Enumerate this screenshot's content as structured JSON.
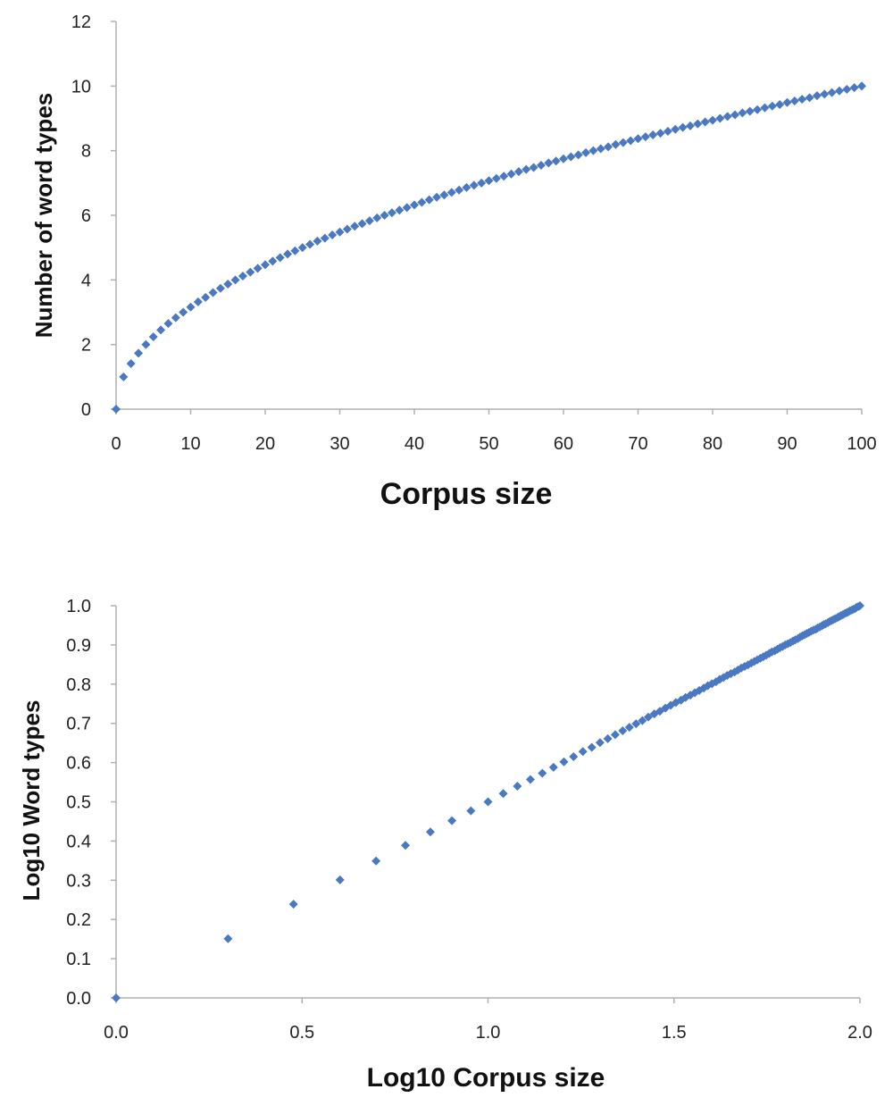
{
  "chart_data": [
    {
      "type": "scatter",
      "title": "",
      "xlabel": "Corpus size",
      "ylabel": "Number of word types",
      "xlim": [
        0,
        100
      ],
      "ylim": [
        0,
        12
      ],
      "xticks": [
        "0",
        "10",
        "20",
        "30",
        "40",
        "50",
        "60",
        "70",
        "80",
        "90",
        "100"
      ],
      "yticks": [
        "0",
        "2",
        "4",
        "6",
        "8",
        "10",
        "12"
      ],
      "grid": false,
      "legend": "none",
      "marker": "diamond",
      "color": "#4a78c2",
      "series": [
        {
          "x": [
            0,
            1,
            2,
            3,
            4,
            5,
            6,
            7,
            8,
            9,
            10,
            11,
            12,
            13,
            14,
            15,
            16,
            17,
            18,
            19,
            20,
            21,
            22,
            23,
            24,
            25,
            26,
            27,
            28,
            29,
            30,
            31,
            32,
            33,
            34,
            35,
            36,
            37,
            38,
            39,
            40,
            41,
            42,
            43,
            44,
            45,
            46,
            47,
            48,
            49,
            50,
            51,
            52,
            53,
            54,
            55,
            56,
            57,
            58,
            59,
            60,
            61,
            62,
            63,
            64,
            65,
            66,
            67,
            68,
            69,
            70,
            71,
            72,
            73,
            74,
            75,
            76,
            77,
            78,
            79,
            80,
            81,
            82,
            83,
            84,
            85,
            86,
            87,
            88,
            89,
            90,
            91,
            92,
            93,
            94,
            95,
            96,
            97,
            98,
            99,
            100
          ],
          "y": [
            0,
            1.0,
            1.41,
            1.73,
            2.0,
            2.24,
            2.45,
            2.65,
            2.83,
            3.0,
            3.16,
            3.32,
            3.46,
            3.61,
            3.74,
            3.87,
            4.0,
            4.12,
            4.24,
            4.36,
            4.47,
            4.58,
            4.69,
            4.8,
            4.9,
            5.0,
            5.1,
            5.2,
            5.29,
            5.39,
            5.48,
            5.57,
            5.66,
            5.74,
            5.83,
            5.92,
            6.0,
            6.08,
            6.16,
            6.24,
            6.32,
            6.4,
            6.48,
            6.56,
            6.63,
            6.71,
            6.78,
            6.86,
            6.93,
            7.0,
            7.07,
            7.14,
            7.21,
            7.28,
            7.35,
            7.42,
            7.48,
            7.55,
            7.62,
            7.68,
            7.75,
            7.81,
            7.87,
            7.94,
            8.0,
            8.06,
            8.12,
            8.19,
            8.25,
            8.31,
            8.37,
            8.43,
            8.49,
            8.54,
            8.6,
            8.66,
            8.72,
            8.77,
            8.83,
            8.89,
            8.94,
            9.0,
            9.06,
            9.11,
            9.17,
            9.22,
            9.27,
            9.33,
            9.38,
            9.43,
            9.49,
            9.54,
            9.59,
            9.64,
            9.7,
            9.75,
            9.8,
            9.85,
            9.9,
            9.95,
            10.0
          ]
        }
      ]
    },
    {
      "type": "scatter",
      "title": "",
      "xlabel": "Log10 Corpus size",
      "ylabel": "Log10 Word types",
      "xlim": [
        0,
        2
      ],
      "ylim": [
        0,
        1
      ],
      "xticks": [
        "0.0",
        "0.5",
        "1.0",
        "1.5",
        "2.0"
      ],
      "yticks": [
        "0.0",
        "0.1",
        "0.2",
        "0.3",
        "0.4",
        "0.5",
        "0.6",
        "0.7",
        "0.8",
        "0.9",
        "1.0"
      ],
      "grid": false,
      "legend": "none",
      "marker": "diamond",
      "color": "#4a78c2",
      "series": [
        {
          "x": [
            0.0,
            0.301,
            0.477,
            0.602,
            0.699,
            0.778,
            0.845,
            0.903,
            0.954,
            1.0,
            1.041,
            1.079,
            1.114,
            1.146,
            1.176,
            1.204,
            1.23,
            1.255,
            1.279,
            1.301,
            1.322,
            1.342,
            1.362,
            1.38,
            1.398,
            1.415,
            1.431,
            1.447,
            1.462,
            1.477,
            1.491,
            1.505,
            1.519,
            1.531,
            1.544,
            1.556,
            1.568,
            1.58,
            1.591,
            1.602,
            1.613,
            1.623,
            1.633,
            1.643,
            1.653,
            1.663,
            1.672,
            1.681,
            1.69,
            1.699,
            1.708,
            1.716,
            1.724,
            1.732,
            1.74,
            1.748,
            1.756,
            1.763,
            1.771,
            1.778,
            1.785,
            1.792,
            1.799,
            1.806,
            1.813,
            1.82,
            1.826,
            1.833,
            1.839,
            1.845,
            1.851,
            1.857,
            1.863,
            1.869,
            1.875,
            1.881,
            1.886,
            1.892,
            1.898,
            1.903,
            1.908,
            1.914,
            1.919,
            1.924,
            1.929,
            1.934,
            1.94,
            1.944,
            1.949,
            1.954,
            1.959,
            1.964,
            1.968,
            1.973,
            1.978,
            1.982,
            1.987,
            1.991,
            1.996,
            2.0
          ],
          "y": [
            0.0,
            0.151,
            0.239,
            0.301,
            0.349,
            0.389,
            0.423,
            0.452,
            0.477,
            0.5,
            0.521,
            0.54,
            0.557,
            0.573,
            0.588,
            0.602,
            0.615,
            0.628,
            0.639,
            0.651,
            0.661,
            0.671,
            0.681,
            0.69,
            0.699,
            0.707,
            0.716,
            0.724,
            0.731,
            0.739,
            0.746,
            0.753,
            0.759,
            0.766,
            0.772,
            0.778,
            0.784,
            0.79,
            0.796,
            0.801,
            0.806,
            0.812,
            0.817,
            0.822,
            0.827,
            0.831,
            0.836,
            0.841,
            0.845,
            0.849,
            0.854,
            0.858,
            0.862,
            0.866,
            0.87,
            0.874,
            0.878,
            0.882,
            0.885,
            0.889,
            0.893,
            0.896,
            0.9,
            0.903,
            0.906,
            0.91,
            0.913,
            0.916,
            0.92,
            0.923,
            0.926,
            0.929,
            0.932,
            0.935,
            0.938,
            0.94,
            0.943,
            0.946,
            0.949,
            0.952,
            0.954,
            0.957,
            0.96,
            0.962,
            0.965,
            0.967,
            0.97,
            0.972,
            0.975,
            0.977,
            0.98,
            0.982,
            0.984,
            0.987,
            0.989,
            0.991,
            0.993,
            0.996,
            0.998,
            1.0
          ]
        }
      ]
    }
  ]
}
